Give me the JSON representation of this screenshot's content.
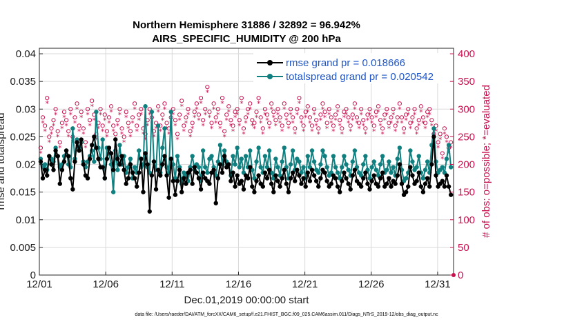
{
  "chart_data": {
    "type": "line",
    "title_line1": "Northern Hemisphere 31886 / 32892 = 96.942%",
    "title_line2": "AIRS_SPECIFIC_HUMIDITY @ 200 hPa",
    "xlabel": "Dec.01,2019 00:00:00 start",
    "ylabel": "rmse and totalspread",
    "y2label": "# of obs: o=possible; *=evaluated",
    "footer": "data file: /Users/raeder/DAI/ATM_forcXX/CAM6_setup/f.e21.FHIST_BGC.f09_025.CAM6assim.011/Diags_NTrS_2019-12/obs_diag_output.nc",
    "x_ticks": [
      {
        "day": 1,
        "label": "12/01"
      },
      {
        "day": 6,
        "label": "12/06"
      },
      {
        "day": 11,
        "label": "12/11"
      },
      {
        "day": 16,
        "label": "12/16"
      },
      {
        "day": 21,
        "label": "12/21"
      },
      {
        "day": 26,
        "label": "12/26"
      },
      {
        "day": 31,
        "label": "12/31"
      }
    ],
    "xlim": [
      1,
      32.2
    ],
    "ylim": [
      0,
      0.041
    ],
    "y2lim": [
      0,
      410
    ],
    "y_ticks": [
      {
        "v": 0,
        "label": "0"
      },
      {
        "v": 0.005,
        "label": "0.005"
      },
      {
        "v": 0.01,
        "label": "0.01"
      },
      {
        "v": 0.015,
        "label": "0.015"
      },
      {
        "v": 0.02,
        "label": "0.02"
      },
      {
        "v": 0.025,
        "label": "0.025"
      },
      {
        "v": 0.03,
        "label": "0.03"
      },
      {
        "v": 0.035,
        "label": "0.035"
      },
      {
        "v": 0.04,
        "label": "0.04"
      }
    ],
    "y2_ticks": [
      {
        "v": 0,
        "label": "0"
      },
      {
        "v": 50,
        "label": "50"
      },
      {
        "v": 100,
        "label": "100"
      },
      {
        "v": 150,
        "label": "150"
      },
      {
        "v": 200,
        "label": "200"
      },
      {
        "v": 250,
        "label": "250"
      },
      {
        "v": 300,
        "label": "300"
      },
      {
        "v": 350,
        "label": "350"
      },
      {
        "v": 400,
        "label": "400"
      }
    ],
    "series": [
      {
        "name": "rmse grand pr = 0.018666",
        "color": "#000000",
        "axis": "left",
        "values": [
          0.0205,
          0.0175,
          0.019,
          0.018,
          0.0215,
          0.02,
          0.019,
          0.0225,
          0.0215,
          0.0165,
          0.019,
          0.0205,
          0.0225,
          0.0215,
          0.0175,
          0.0155,
          0.0205,
          0.024,
          0.0225,
          0.0245,
          0.02,
          0.018,
          0.0175,
          0.021,
          0.0235,
          0.025,
          0.023,
          0.021,
          0.0195,
          0.0195,
          0.0175,
          0.021,
          0.023,
          0.022,
          0.019,
          0.0245,
          0.021,
          0.02,
          0.0215,
          0.019,
          0.0165,
          0.0175,
          0.02,
          0.0185,
          0.0175,
          0.016,
          0.0185,
          0.021,
          0.015,
          0.022,
          0.02,
          0.0115,
          0.018,
          0.0205,
          0.0155,
          0.019,
          0.018,
          0.02,
          0.0215,
          0.018,
          0.014,
          0.021,
          0.017,
          0.0145,
          0.017,
          0.019,
          0.015,
          0.0175,
          0.0165,
          0.0185,
          0.019,
          0.0165,
          0.0195,
          0.0185,
          0.0175,
          0.0155,
          0.0185,
          0.0175,
          0.017,
          0.0165,
          0.0185,
          0.019,
          0.013,
          0.0175,
          0.02,
          0.0185,
          0.0215,
          0.0195,
          0.02,
          0.017,
          0.0185,
          0.016,
          0.018,
          0.0165,
          0.017,
          0.0155,
          0.018,
          0.0175,
          0.0195,
          0.016,
          0.015,
          0.017,
          0.018,
          0.0165,
          0.016,
          0.0185,
          0.0175,
          0.019,
          0.0165,
          0.015,
          0.018,
          0.017,
          0.016,
          0.0175,
          0.019,
          0.0165,
          0.015,
          0.0175,
          0.0185,
          0.017,
          0.019,
          0.018,
          0.0165,
          0.0175,
          0.016,
          0.0185,
          0.017,
          0.019,
          0.018,
          0.017,
          0.016,
          0.0175,
          0.019,
          0.0185,
          0.017,
          0.016,
          0.0165,
          0.018,
          0.0175,
          0.016,
          0.015,
          0.017,
          0.0185,
          0.0175,
          0.0165,
          0.0155,
          0.018,
          0.019,
          0.017,
          0.0165,
          0.016,
          0.0175,
          0.0185,
          0.0165,
          0.0155,
          0.017,
          0.018,
          0.0165,
          0.016,
          0.0175,
          0.0185,
          0.016,
          0.0165,
          0.0175,
          0.016,
          0.017,
          0.0165,
          0.018,
          0.02,
          0.0165,
          0.0145,
          0.015,
          0.016,
          0.0195,
          0.018,
          0.0165,
          0.017,
          0.0185,
          0.016,
          0.015,
          0.0165,
          0.0175,
          0.016,
          0.02,
          0.025,
          0.018,
          0.016,
          0.0165,
          0.017,
          0.016,
          0.018,
          0.016,
          0.0145
        ]
      },
      {
        "name": "totalspread grand pr = 0.020542",
        "color": "#0f7f7f",
        "axis": "left",
        "values": [
          0.021,
          0.0195,
          0.02,
          0.019,
          0.0215,
          0.021,
          0.0205,
          0.023,
          0.0215,
          0.0195,
          0.02,
          0.0215,
          0.0225,
          0.02,
          0.0195,
          0.0265,
          0.021,
          0.0245,
          0.023,
          0.024,
          0.0205,
          0.0195,
          0.0205,
          0.0215,
          0.0225,
          0.0205,
          0.0295,
          0.023,
          0.021,
          0.0245,
          0.0175,
          0.023,
          0.022,
          0.02,
          0.015,
          0.0225,
          0.019,
          0.0235,
          0.02,
          0.0215,
          0.0185,
          0.0195,
          0.021,
          0.0175,
          0.0195,
          0.0185,
          0.0225,
          0.0195,
          0.02,
          0.0305,
          0.0195,
          0.0185,
          0.0295,
          0.0205,
          0.019,
          0.027,
          0.0185,
          0.023,
          0.0265,
          0.0195,
          0.0185,
          0.0295,
          0.02,
          0.0175,
          0.0215,
          0.0195,
          0.0165,
          0.0185,
          0.018,
          0.017,
          0.0195,
          0.0215,
          0.019,
          0.02,
          0.0195,
          0.017,
          0.0225,
          0.0195,
          0.0185,
          0.021,
          0.0215,
          0.0195,
          0.018,
          0.0205,
          0.0235,
          0.02,
          0.0225,
          0.0205,
          0.02,
          0.018,
          0.0215,
          0.02,
          0.023,
          0.0195,
          0.021,
          0.0185,
          0.0215,
          0.0195,
          0.0225,
          0.019,
          0.0175,
          0.0205,
          0.023,
          0.0195,
          0.0185,
          0.0215,
          0.0195,
          0.0225,
          0.0185,
          0.0175,
          0.021,
          0.0195,
          0.018,
          0.0205,
          0.023,
          0.0195,
          0.0175,
          0.02,
          0.0225,
          0.019,
          0.021,
          0.0205,
          0.0185,
          0.0195,
          0.0175,
          0.0215,
          0.0195,
          0.0225,
          0.0205,
          0.019,
          0.0185,
          0.02,
          0.0225,
          0.0215,
          0.0195,
          0.018,
          0.0185,
          0.0215,
          0.0195,
          0.0185,
          0.0175,
          0.0195,
          0.0215,
          0.02,
          0.019,
          0.018,
          0.0205,
          0.0225,
          0.0195,
          0.0185,
          0.018,
          0.02,
          0.0215,
          0.019,
          0.0175,
          0.0195,
          0.0205,
          0.019,
          0.018,
          0.02,
          0.0215,
          0.0185,
          0.019,
          0.0205,
          0.0185,
          0.0195,
          0.018,
          0.021,
          0.023,
          0.019,
          0.017,
          0.0175,
          0.0185,
          0.0225,
          0.0205,
          0.019,
          0.0195,
          0.0215,
          0.0185,
          0.0175,
          0.019,
          0.0205,
          0.0185,
          0.0235,
          0.0265,
          0.0205,
          0.0185,
          0.019,
          0.0195,
          0.0185,
          0.021,
          0.0235,
          0.0195
        ]
      },
      {
        "name": "possible",
        "color": "#c8104f",
        "axis": "right",
        "marker": "o",
        "values": [
          230,
          285,
          270,
          320,
          250,
          265,
          280,
          300,
          260,
          240,
          275,
          295,
          280,
          260,
          300,
          250,
          285,
          310,
          270,
          295,
          265,
          240,
          300,
          280,
          315,
          290,
          255,
          275,
          300,
          270,
          290,
          260,
          285,
          305,
          270,
          255,
          280,
          300,
          265,
          250,
          295,
          275,
          260,
          285,
          310,
          270,
          290,
          300,
          265,
          255,
          280,
          300,
          285,
          260,
          275,
          305,
          270,
          290,
          310,
          275,
          265,
          285,
          300,
          280,
          255,
          290,
          315,
          270,
          285,
          300,
          260,
          275,
          295,
          310,
          290,
          320,
          280,
          300,
          340,
          295,
          275,
          310,
          285,
          300,
          275,
          320,
          260,
          290,
          305,
          280,
          270,
          295,
          300,
          280,
          320,
          265,
          285,
          300,
          310,
          280,
          275,
          295,
          320,
          285,
          265,
          300,
          290,
          275,
          310,
          295,
          280,
          300,
          285,
          270,
          310,
          290,
          275,
          300,
          285,
          265,
          300,
          320,
          285,
          270,
          295,
          305,
          285,
          270,
          300,
          280,
          265,
          290,
          310,
          295,
          275,
          300,
          285,
          270,
          290,
          305,
          280,
          265,
          295,
          300,
          285,
          270,
          290,
          310,
          285,
          275,
          300,
          280,
          265,
          290,
          300,
          285,
          270,
          295,
          305,
          280,
          265,
          290,
          300,
          275,
          285,
          300,
          270,
          285,
          310,
          285,
          265,
          290,
          300,
          275,
          285,
          300,
          265,
          280,
          305,
          285,
          275,
          295,
          300,
          280,
          255,
          270,
          240,
          255,
          220,
          265,
          250,
          230,
          240
        ]
      },
      {
        "name": "evaluated",
        "color": "#c8104f",
        "axis": "right",
        "marker": "*",
        "values": [
          220,
          275,
          260,
          310,
          240,
          255,
          270,
          290,
          250,
          230,
          265,
          285,
          270,
          250,
          290,
          240,
          275,
          300,
          260,
          285,
          255,
          230,
          290,
          270,
          305,
          280,
          245,
          265,
          290,
          260,
          280,
          250,
          275,
          295,
          260,
          245,
          270,
          290,
          255,
          240,
          285,
          265,
          250,
          275,
          300,
          260,
          280,
          290,
          255,
          245,
          270,
          290,
          275,
          250,
          265,
          295,
          260,
          280,
          300,
          265,
          255,
          275,
          290,
          270,
          245,
          280,
          305,
          260,
          275,
          290,
          250,
          265,
          285,
          300,
          280,
          310,
          270,
          290,
          330,
          285,
          265,
          300,
          275,
          290,
          265,
          310,
          250,
          280,
          295,
          270,
          260,
          285,
          290,
          270,
          310,
          255,
          275,
          290,
          300,
          270,
          265,
          285,
          310,
          275,
          255,
          290,
          280,
          265,
          300,
          285,
          270,
          290,
          275,
          260,
          300,
          280,
          265,
          290,
          275,
          255,
          290,
          310,
          275,
          260,
          285,
          295,
          275,
          260,
          290,
          270,
          255,
          280,
          300,
          285,
          265,
          290,
          275,
          260,
          280,
          295,
          270,
          255,
          285,
          290,
          275,
          260,
          280,
          300,
          275,
          265,
          290,
          270,
          255,
          280,
          290,
          275,
          260,
          285,
          295,
          270,
          255,
          280,
          290,
          265,
          275,
          290,
          260,
          275,
          300,
          275,
          255,
          280,
          290,
          265,
          275,
          290,
          255,
          270,
          295,
          275,
          265,
          285,
          290,
          270,
          245,
          260,
          230,
          245,
          210,
          255,
          240,
          220,
          230
        ]
      }
    ],
    "legend": {
      "placement": "top-right"
    }
  }
}
